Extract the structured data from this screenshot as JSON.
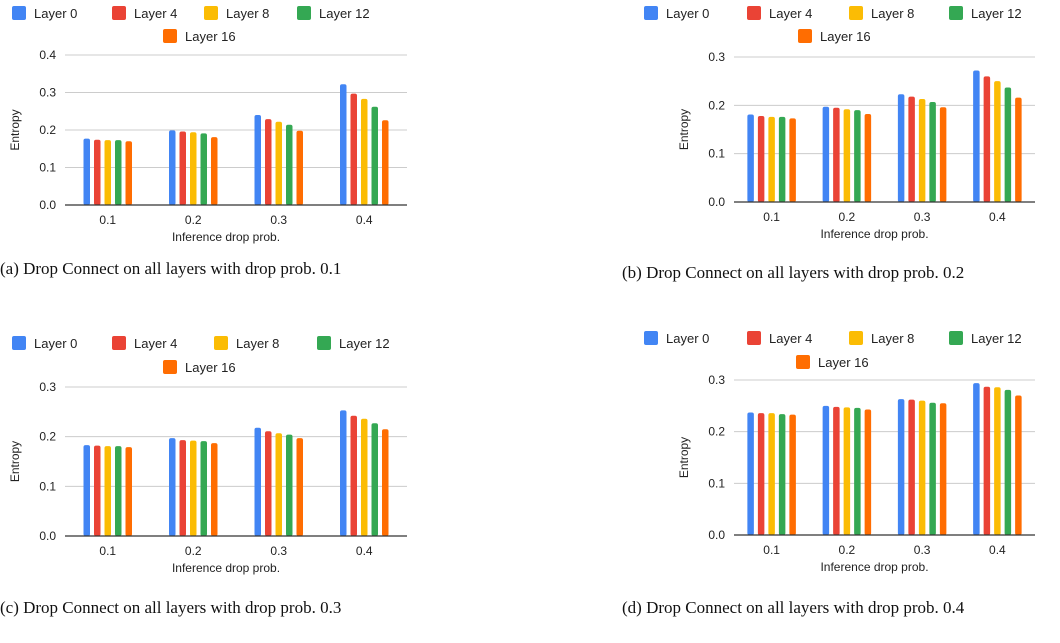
{
  "legend_items": [
    {
      "name": "Layer 0",
      "color": "#4285F4"
    },
    {
      "name": "Layer 4",
      "color": "#EA4335"
    },
    {
      "name": "Layer 8",
      "color": "#FBBC04"
    },
    {
      "name": "Layer 12",
      "color": "#34A853"
    },
    {
      "name": "Layer 16",
      "color": "#FF6D01"
    }
  ],
  "chart_data": [
    {
      "type": "bar",
      "caption": "(a) Drop Connect on all layers with drop prob. 0.1",
      "xlabel": "Inference drop prob.",
      "ylabel": "Entropy",
      "categories": [
        "0.1",
        "0.2",
        "0.3",
        "0.4"
      ],
      "yticks": [
        "0.0",
        "0.1",
        "0.2",
        "0.3",
        "0.4"
      ],
      "ylim": [
        0,
        0.4
      ],
      "grid": true,
      "legend": "top",
      "series": [
        {
          "name": "Layer 0",
          "values": [
            0.177,
            0.199,
            0.24,
            0.322
          ]
        },
        {
          "name": "Layer 4",
          "values": [
            0.174,
            0.196,
            0.229,
            0.297
          ]
        },
        {
          "name": "Layer 8",
          "values": [
            0.173,
            0.194,
            0.222,
            0.283
          ]
        },
        {
          "name": "Layer 12",
          "values": [
            0.173,
            0.191,
            0.214,
            0.262
          ]
        },
        {
          "name": "Layer 16",
          "values": [
            0.17,
            0.181,
            0.198,
            0.226
          ]
        }
      ]
    },
    {
      "type": "bar",
      "caption": "(b) Drop Connect on all layers with drop prob. 0.2",
      "xlabel": "Inference drop prob.",
      "ylabel": "Entropy",
      "categories": [
        "0.1",
        "0.2",
        "0.3",
        "0.4"
      ],
      "yticks": [
        "0.0",
        "0.1",
        "0.2",
        "0.3"
      ],
      "ylim": [
        0,
        0.3
      ],
      "grid": true,
      "legend": "top",
      "series": [
        {
          "name": "Layer 0",
          "values": [
            0.181,
            0.197,
            0.223,
            0.272
          ]
        },
        {
          "name": "Layer 4",
          "values": [
            0.178,
            0.195,
            0.218,
            0.26
          ]
        },
        {
          "name": "Layer 8",
          "values": [
            0.176,
            0.192,
            0.213,
            0.25
          ]
        },
        {
          "name": "Layer 12",
          "values": [
            0.176,
            0.19,
            0.207,
            0.237
          ]
        },
        {
          "name": "Layer 16",
          "values": [
            0.173,
            0.182,
            0.196,
            0.216
          ]
        }
      ]
    },
    {
      "type": "bar",
      "caption": "(c) Drop Connect on all layers with drop prob. 0.3",
      "xlabel": "Inference drop prob.",
      "ylabel": "Entropy",
      "categories": [
        "0.1",
        "0.2",
        "0.3",
        "0.4"
      ],
      "yticks": [
        "0.0",
        "0.1",
        "0.2",
        "0.3"
      ],
      "ylim": [
        0,
        0.3
      ],
      "grid": true,
      "legend": "top",
      "series": [
        {
          "name": "Layer 0",
          "values": [
            0.183,
            0.197,
            0.218,
            0.253
          ]
        },
        {
          "name": "Layer 4",
          "values": [
            0.182,
            0.193,
            0.211,
            0.242
          ]
        },
        {
          "name": "Layer 8",
          "values": [
            0.181,
            0.192,
            0.207,
            0.236
          ]
        },
        {
          "name": "Layer 12",
          "values": [
            0.181,
            0.191,
            0.204,
            0.227
          ]
        },
        {
          "name": "Layer 16",
          "values": [
            0.179,
            0.187,
            0.197,
            0.215
          ]
        }
      ]
    },
    {
      "type": "bar",
      "caption": "(d) Drop Connect on all layers with drop prob. 0.4",
      "xlabel": "Inference drop prob.",
      "ylabel": "Entropy",
      "categories": [
        "0.1",
        "0.2",
        "0.3",
        "0.4"
      ],
      "yticks": [
        "0.0",
        "0.1",
        "0.2",
        "0.3"
      ],
      "ylim": [
        0,
        0.3
      ],
      "grid": true,
      "legend": "top",
      "series": [
        {
          "name": "Layer 0",
          "values": [
            0.237,
            0.25,
            0.263,
            0.294
          ]
        },
        {
          "name": "Layer 4",
          "values": [
            0.236,
            0.248,
            0.262,
            0.287
          ]
        },
        {
          "name": "Layer 8",
          "values": [
            0.236,
            0.247,
            0.26,
            0.286
          ]
        },
        {
          "name": "Layer 12",
          "values": [
            0.234,
            0.246,
            0.256,
            0.281
          ]
        },
        {
          "name": "Layer 16",
          "values": [
            0.233,
            0.243,
            0.255,
            0.27
          ]
        }
      ]
    }
  ]
}
